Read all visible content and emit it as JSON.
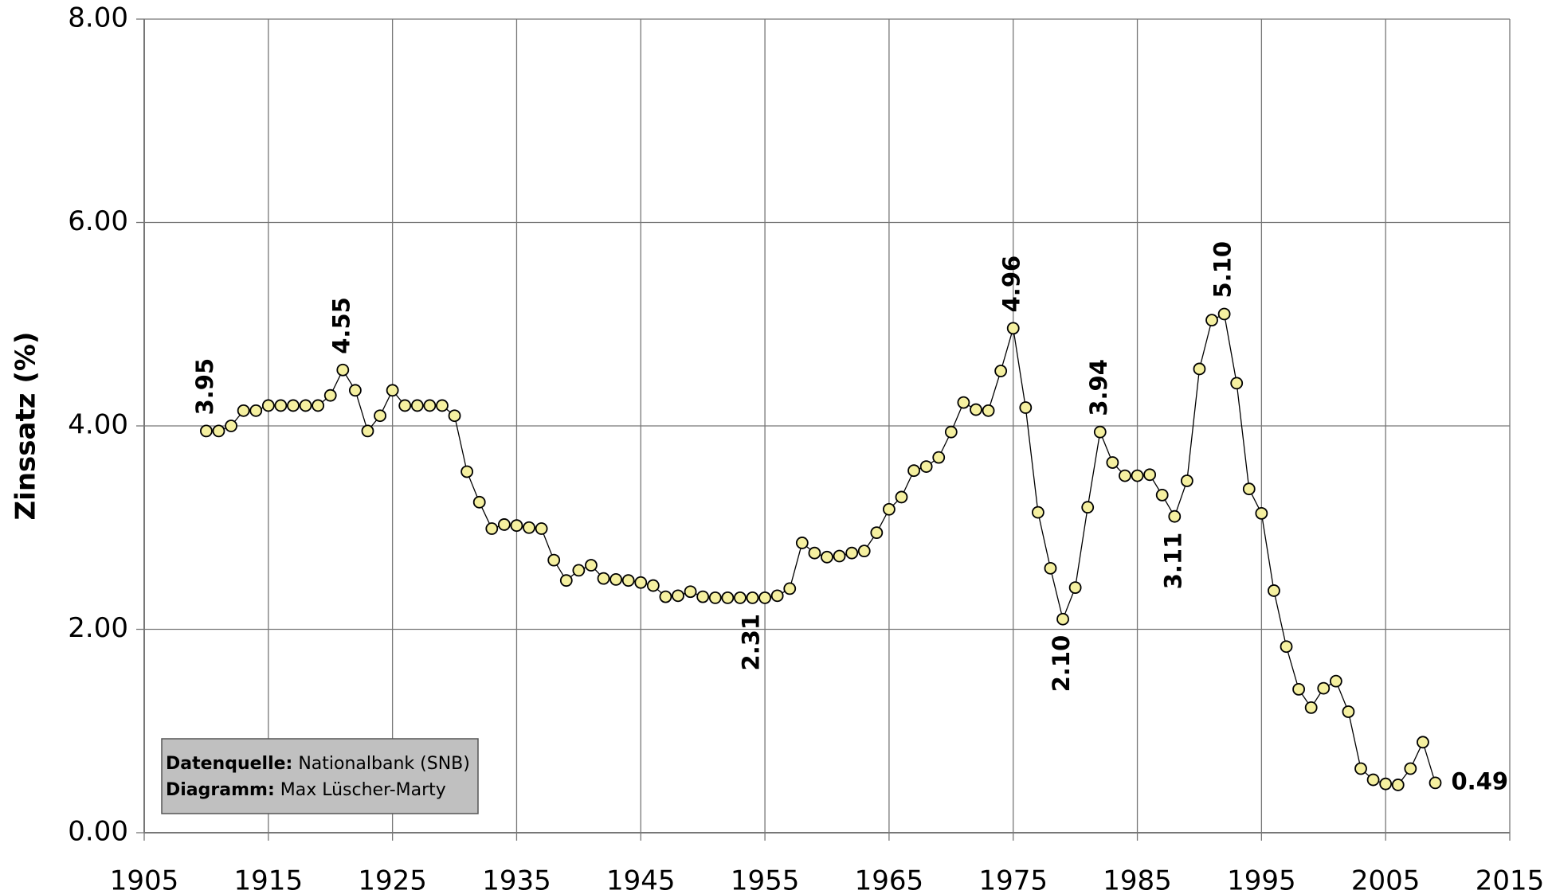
{
  "chart_data": {
    "type": "line",
    "y_label": "Zinssatz (%)",
    "x": [
      1910,
      1911,
      1912,
      1913,
      1914,
      1915,
      1916,
      1917,
      1918,
      1919,
      1920,
      1921,
      1922,
      1923,
      1924,
      1925,
      1926,
      1927,
      1928,
      1929,
      1930,
      1931,
      1932,
      1933,
      1934,
      1935,
      1936,
      1937,
      1938,
      1939,
      1940,
      1941,
      1942,
      1943,
      1944,
      1945,
      1946,
      1947,
      1948,
      1949,
      1950,
      1951,
      1952,
      1953,
      1954,
      1955,
      1956,
      1957,
      1958,
      1959,
      1960,
      1961,
      1962,
      1963,
      1964,
      1965,
      1966,
      1967,
      1968,
      1969,
      1970,
      1971,
      1972,
      1973,
      1974,
      1975,
      1976,
      1977,
      1978,
      1979,
      1980,
      1981,
      1982,
      1983,
      1984,
      1985,
      1986,
      1987,
      1988,
      1989,
      1990,
      1991,
      1992,
      1993,
      1994,
      1995,
      1996,
      1997,
      1998,
      1999,
      2000,
      2001,
      2002,
      2003,
      2004,
      2005,
      2006,
      2007,
      2008,
      2009
    ],
    "series": [
      {
        "name": "Zinssatz",
        "color": "#f5f0a0",
        "values": [
          3.95,
          3.95,
          4.0,
          4.15,
          4.15,
          4.2,
          4.2,
          4.2,
          4.2,
          4.2,
          4.3,
          4.55,
          4.35,
          3.95,
          4.1,
          4.35,
          4.2,
          4.2,
          4.2,
          4.2,
          4.1,
          3.55,
          3.25,
          2.99,
          3.03,
          3.02,
          3.0,
          2.99,
          2.68,
          2.48,
          2.58,
          2.63,
          2.5,
          2.49,
          2.48,
          2.46,
          2.43,
          2.32,
          2.33,
          2.37,
          2.32,
          2.31,
          2.31,
          2.31,
          2.31,
          2.31,
          2.33,
          2.4,
          2.85,
          2.75,
          2.71,
          2.72,
          2.75,
          2.77,
          2.95,
          3.18,
          3.3,
          3.56,
          3.6,
          3.69,
          3.94,
          4.23,
          4.16,
          4.15,
          4.54,
          4.96,
          4.18,
          3.15,
          2.6,
          2.1,
          2.41,
          3.2,
          3.94,
          3.64,
          3.51,
          3.51,
          3.52,
          3.32,
          3.11,
          3.46,
          4.56,
          5.04,
          5.1,
          4.42,
          3.38,
          3.14,
          2.38,
          1.83,
          1.41,
          1.23,
          1.42,
          1.49,
          1.19,
          0.63,
          0.52,
          0.48,
          0.47,
          0.63,
          0.89,
          0.49
        ],
        "value_labels": [
          "3.95",
          null,
          null,
          null,
          null,
          null,
          null,
          null,
          null,
          null,
          null,
          "4.55",
          null,
          null,
          null,
          null,
          null,
          null,
          null,
          null,
          null,
          null,
          null,
          null,
          null,
          null,
          null,
          null,
          null,
          null,
          null,
          null,
          null,
          null,
          null,
          null,
          null,
          null,
          null,
          null,
          null,
          null,
          null,
          null,
          "2.31",
          null,
          null,
          null,
          null,
          null,
          null,
          null,
          null,
          null,
          null,
          null,
          null,
          null,
          null,
          null,
          null,
          null,
          null,
          null,
          null,
          "4.96",
          null,
          null,
          null,
          "2.10",
          null,
          null,
          "3.94",
          null,
          null,
          null,
          null,
          null,
          "3.11",
          null,
          null,
          null,
          "5.10",
          null,
          null,
          null,
          null,
          null,
          null,
          null,
          null,
          null,
          null,
          null,
          null,
          null,
          null,
          null,
          null,
          "0.49"
        ]
      }
    ],
    "xlim": [
      1905,
      2015
    ],
    "xticks": [
      1905,
      1915,
      1925,
      1935,
      1945,
      1955,
      1965,
      1975,
      1985,
      1995,
      2005,
      2015
    ],
    "ylim": [
      0,
      8
    ],
    "yticks": [
      {
        "value": 0,
        "label": "0.00"
      },
      {
        "value": 2,
        "label": "2.00"
      },
      {
        "value": 4,
        "label": "4.00"
      },
      {
        "value": 6,
        "label": "6.00"
      },
      {
        "value": 8,
        "label": "8.00"
      }
    ],
    "grid": true,
    "source": {
      "label": "Datenquelle:",
      "text": "Nationalbank (SNB)"
    },
    "credit": {
      "label": "Diagramm:",
      "text": "Max Lüscher-Marty"
    }
  }
}
